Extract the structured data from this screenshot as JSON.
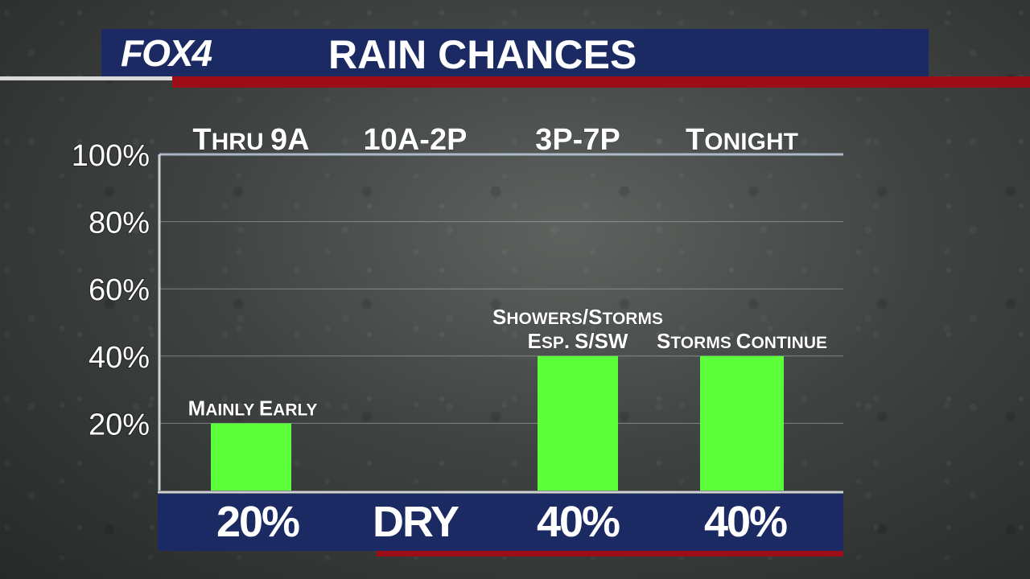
{
  "header": {
    "logo": "FOX4",
    "title": "RAIN CHANCES"
  },
  "colors": {
    "navy": "#1b2a62",
    "red": "#9c0d18",
    "bar": "#5cff3a",
    "text": "#ffffff"
  },
  "chart_data": {
    "type": "bar",
    "title": "RAIN CHANCES",
    "categories": [
      "Thru 9A",
      "10A-2P",
      "3P-7P",
      "Tonight"
    ],
    "values": [
      20,
      0,
      40,
      40
    ],
    "bottom_labels": [
      "20%",
      "DRY",
      "40%",
      "40%"
    ],
    "annotations": [
      [
        "Mainly Early"
      ],
      [],
      [
        "Showers/Storms",
        "Esp. S/SW"
      ],
      [
        "Storms Continue"
      ]
    ],
    "yticks": [
      "100%",
      "80%",
      "60%",
      "40%",
      "20%"
    ],
    "ylim": [
      0,
      100
    ],
    "grid": true,
    "xlabel": "",
    "ylabel": ""
  }
}
